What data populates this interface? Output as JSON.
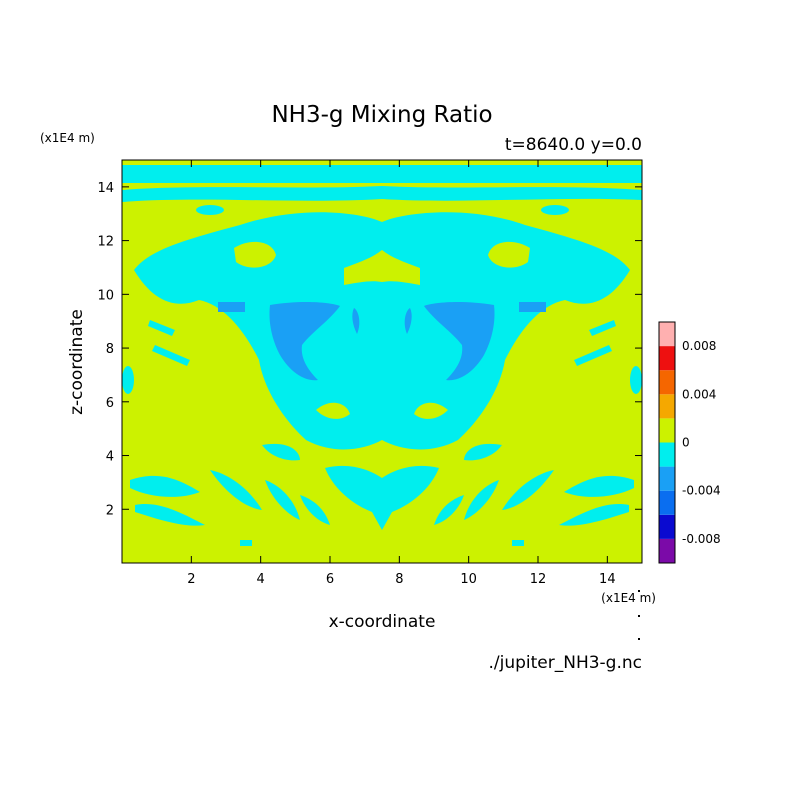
{
  "chart_data": {
    "type": "heatmap",
    "title": "NH3-g Mixing Ratio",
    "subtitle": "t=8640.0 y=0.0",
    "xlabel": "x-coordinate",
    "ylabel": "z-coordinate",
    "x_unit": "(x1E4 m)",
    "y_unit": "(x1E4 m)",
    "source_file": "./jupiter_NH3-g.nc",
    "xlim": [
      0,
      15
    ],
    "ylim": [
      0,
      15
    ],
    "x_ticks": [
      2,
      4,
      6,
      8,
      10,
      12,
      14
    ],
    "y_ticks": [
      2,
      4,
      6,
      8,
      10,
      12,
      14
    ],
    "colorbar": {
      "levels": [
        -0.01,
        -0.008,
        -0.006,
        -0.004,
        -0.002,
        0,
        0.002,
        0.004,
        0.006,
        0.008,
        0.01
      ],
      "colors": [
        "#7b0aa8",
        "#0a0ad0",
        "#0a6ef0",
        "#1aa0f5",
        "#00eeee",
        "#ccf200",
        "#f5a800",
        "#f56600",
        "#ee1010",
        "#ffb0b0"
      ],
      "tick_values": [
        -0.008,
        -0.004,
        0,
        0.004,
        0.008
      ],
      "tick_labels": [
        "-0.008",
        "-0.004",
        "0",
        "0.004",
        "0.008"
      ]
    },
    "regions": [
      {
        "level": "0 to 0.002",
        "color": "#ccf200",
        "area": "background / most of domain"
      },
      {
        "level": "-0.002 to 0",
        "color": "#00eeee",
        "area": "top band z 13.8-14.8, central plume x 3-12 z 4-13, lower filaments z 1-4"
      },
      {
        "level": "-0.004 to -0.002",
        "color": "#1aa0f5",
        "area": "twin vortices near x 5 and x 10, z 7-9.5"
      }
    ]
  },
  "colors": {
    "zero_band": "#ccf200",
    "neg_small": "#00eeee",
    "neg_medium": "#1aa0f5"
  }
}
